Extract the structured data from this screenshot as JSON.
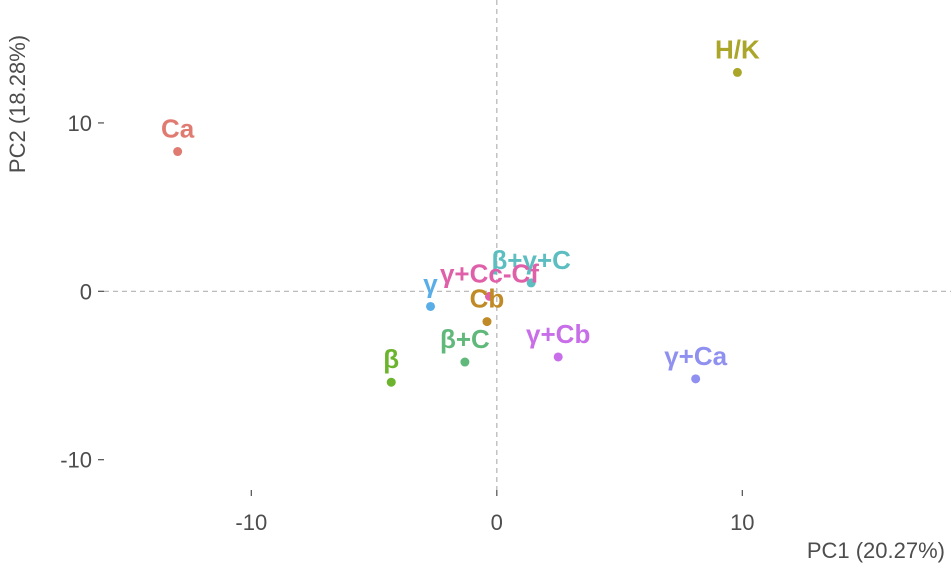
{
  "chart_data": {
    "type": "scatter",
    "title": "",
    "xlabel": "PC1 (20.27%)",
    "ylabel": "PC2 (18.28%)",
    "xlim": [
      -16,
      18.5
    ],
    "ylim": [
      -11.8,
      17.3
    ],
    "xticks": [
      -10,
      0,
      10
    ],
    "yticks": [
      -10,
      0,
      10
    ],
    "xtick_labels": [
      "-10",
      "0",
      "10"
    ],
    "ytick_labels": [
      "-10",
      "0",
      "10"
    ],
    "grid": false,
    "reference_lines": {
      "x": 0,
      "y": 0,
      "style": "dashed"
    },
    "points": [
      {
        "label": "Ca",
        "x": -13.0,
        "y": 8.3,
        "color": "#E07B72"
      },
      {
        "label": "H/K",
        "x": 9.8,
        "y": 13.0,
        "color": "#ABA62A"
      },
      {
        "label": "β+γ+C",
        "x": 1.4,
        "y": 0.5,
        "color": "#5DBEC2"
      },
      {
        "label": "γ+Cc-Cf",
        "x": -0.3,
        "y": -0.3,
        "color": "#E05FA9"
      },
      {
        "label": "γ",
        "x": -2.7,
        "y": -0.9,
        "color": "#5AAEE8"
      },
      {
        "label": "Cb",
        "x": -0.4,
        "y": -1.8,
        "color": "#C08A26"
      },
      {
        "label": "β+C",
        "x": -1.3,
        "y": -4.2,
        "color": "#60B87A"
      },
      {
        "label": "γ+Cb",
        "x": 2.5,
        "y": -3.9,
        "color": "#C86EE8"
      },
      {
        "label": "β",
        "x": -4.3,
        "y": -5.4,
        "color": "#6DB42E"
      },
      {
        "label": "γ+Ca",
        "x": 8.1,
        "y": -5.2,
        "color": "#8F90F0"
      }
    ]
  }
}
